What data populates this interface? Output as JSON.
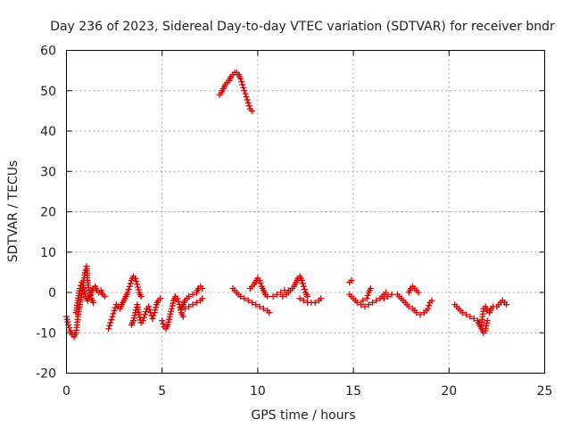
{
  "chart_data": {
    "type": "scatter",
    "title": "Day 236 of 2023, Sidereal Day-to-day VTEC variation (SDTVAR) for receiver bndr",
    "xlabel": "GPS time / hours",
    "ylabel": "SDTVAR / TECUs",
    "xlim": [
      0,
      25
    ],
    "ylim": [
      -20,
      60
    ],
    "xticks": [
      0,
      5,
      10,
      15,
      20,
      25
    ],
    "yticks": [
      -20,
      -10,
      0,
      10,
      20,
      30,
      40,
      50,
      60
    ],
    "xtick_labels": [
      "0",
      "5",
      "10",
      "15",
      "20",
      "25"
    ],
    "ytick_labels": [
      "-20",
      "-10",
      "0",
      "10",
      "20",
      "30",
      "40",
      "50",
      "60"
    ],
    "grid": true,
    "marker": "plus",
    "color": "#e00000",
    "series": [
      {
        "name": "SDTVAR",
        "segments": [
          [
            [
              0.0,
              -6
            ],
            [
              0.1,
              -8
            ],
            [
              0.2,
              -9.5
            ],
            [
              0.3,
              -10.5
            ],
            [
              0.4,
              -11
            ],
            [
              0.5,
              -10
            ],
            [
              0.55,
              -8
            ],
            [
              0.6,
              -6
            ],
            [
              0.7,
              -3
            ],
            [
              0.8,
              0
            ],
            [
              0.9,
              3
            ],
            [
              1.0,
              5.5
            ],
            [
              1.05,
              6.5
            ],
            [
              1.1,
              3
            ],
            [
              1.2,
              0
            ],
            [
              1.3,
              -1.5
            ],
            [
              1.4,
              -2.5
            ]
          ],
          [
            [
              0.5,
              -5
            ],
            [
              0.6,
              -2
            ],
            [
              0.7,
              1
            ],
            [
              0.8,
              2.5
            ],
            [
              0.9,
              1
            ],
            [
              1.0,
              -1
            ],
            [
              1.1,
              -2
            ],
            [
              1.2,
              -1
            ],
            [
              1.3,
              0
            ],
            [
              1.4,
              1
            ],
            [
              1.5,
              1.5
            ],
            [
              1.6,
              0.5
            ],
            [
              1.7,
              0
            ],
            [
              1.8,
              0.5
            ],
            [
              1.9,
              -0.5
            ],
            [
              2.0,
              -1
            ]
          ],
          [
            [
              2.2,
              -9
            ],
            [
              2.3,
              -7.5
            ],
            [
              2.4,
              -6
            ],
            [
              2.5,
              -4.5
            ],
            [
              2.6,
              -3
            ],
            [
              2.7,
              -3.5
            ],
            [
              2.8,
              -4
            ],
            [
              2.9,
              -3
            ],
            [
              3.0,
              -2
            ],
            [
              3.1,
              -1
            ],
            [
              3.2,
              0
            ],
            [
              3.3,
              1.5
            ],
            [
              3.4,
              3
            ],
            [
              3.5,
              4
            ],
            [
              3.6,
              3.5
            ],
            [
              3.7,
              2
            ],
            [
              3.8,
              0
            ],
            [
              3.9,
              -1
            ]
          ],
          [
            [
              3.4,
              -8
            ],
            [
              3.5,
              -7
            ],
            [
              3.6,
              -5
            ],
            [
              3.7,
              -3
            ],
            [
              3.8,
              -5.5
            ],
            [
              3.9,
              -7.5
            ],
            [
              4.0,
              -7
            ],
            [
              4.1,
              -5.5
            ],
            [
              4.2,
              -4
            ],
            [
              4.3,
              -3.5
            ],
            [
              4.4,
              -5
            ],
            [
              4.5,
              -6.5
            ],
            [
              4.6,
              -5
            ],
            [
              4.7,
              -3
            ],
            [
              4.8,
              -2
            ],
            [
              4.9,
              -1.5
            ]
          ],
          [
            [
              5.0,
              -7
            ],
            [
              5.1,
              -8.5
            ],
            [
              5.2,
              -9
            ],
            [
              5.3,
              -8
            ],
            [
              5.4,
              -6
            ],
            [
              5.5,
              -4
            ],
            [
              5.6,
              -2
            ],
            [
              5.7,
              -1
            ],
            [
              5.8,
              -1.5
            ],
            [
              5.9,
              -3
            ],
            [
              6.0,
              -5
            ],
            [
              6.1,
              -6
            ]
          ],
          [
            [
              6.0,
              -4
            ],
            [
              6.2,
              -2
            ],
            [
              6.4,
              -1
            ],
            [
              6.6,
              -0.5
            ],
            [
              6.8,
              0
            ],
            [
              6.9,
              1
            ],
            [
              7.0,
              1.5
            ],
            [
              7.1,
              1
            ]
          ],
          [
            [
              6.2,
              -4
            ],
            [
              6.4,
              -3.5
            ],
            [
              6.6,
              -3
            ],
            [
              6.8,
              -2.5
            ],
            [
              7.0,
              -2
            ],
            [
              7.1,
              -1.5
            ]
          ],
          [
            [
              8.0,
              49
            ],
            [
              8.1,
              49.5
            ],
            [
              8.2,
              50.5
            ],
            [
              8.3,
              51.5
            ],
            [
              8.4,
              52
            ],
            [
              8.5,
              52.5
            ],
            [
              8.6,
              53.5
            ],
            [
              8.7,
              54
            ],
            [
              8.8,
              54.5
            ],
            [
              8.9,
              54.5
            ],
            [
              9.0,
              54
            ],
            [
              9.1,
              53
            ],
            [
              9.2,
              51.5
            ],
            [
              9.3,
              50
            ],
            [
              9.4,
              48.5
            ],
            [
              9.5,
              47
            ],
            [
              9.6,
              45.5
            ],
            [
              9.7,
              45
            ]
          ],
          [
            [
              8.7,
              1
            ],
            [
              8.9,
              0
            ],
            [
              9.1,
              -1
            ],
            [
              9.3,
              -1.5
            ],
            [
              9.5,
              -2
            ],
            [
              9.7,
              -2.5
            ],
            [
              9.9,
              -3
            ],
            [
              10.1,
              -3.5
            ],
            [
              10.3,
              -4
            ],
            [
              10.5,
              -4.5
            ],
            [
              10.6,
              -5
            ]
          ],
          [
            [
              9.6,
              1
            ],
            [
              9.8,
              2
            ],
            [
              10.0,
              3.5
            ],
            [
              10.1,
              3
            ],
            [
              10.2,
              1.5
            ],
            [
              10.3,
              0.5
            ],
            [
              10.4,
              -0.5
            ],
            [
              10.5,
              -1
            ]
          ],
          [
            [
              10.8,
              -1
            ],
            [
              11.0,
              -0.5
            ],
            [
              11.2,
              0
            ],
            [
              11.4,
              0.5
            ],
            [
              11.6,
              0.5
            ]
          ],
          [
            [
              11.3,
              -1
            ],
            [
              11.5,
              -0.5
            ],
            [
              11.7,
              0.5
            ],
            [
              11.9,
              1.5
            ],
            [
              12.0,
              2.5
            ],
            [
              12.1,
              3.5
            ],
            [
              12.2,
              4
            ],
            [
              12.3,
              3
            ],
            [
              12.4,
              1.5
            ],
            [
              12.5,
              0
            ],
            [
              12.6,
              -1
            ]
          ],
          [
            [
              12.2,
              -1.5
            ],
            [
              12.4,
              -2
            ],
            [
              12.6,
              -2.5
            ],
            [
              12.8,
              -2.5
            ],
            [
              13.0,
              -2.5
            ],
            [
              13.2,
              -2
            ],
            [
              13.3,
              -1.5
            ]
          ],
          [
            [
              14.8,
              2.5
            ],
            [
              14.9,
              3
            ]
          ],
          [
            [
              14.8,
              -0.5
            ],
            [
              15.0,
              -1.5
            ],
            [
              15.2,
              -2.5
            ],
            [
              15.4,
              -3
            ],
            [
              15.6,
              -3.5
            ],
            [
              15.8,
              -3
            ],
            [
              16.0,
              -2.5
            ],
            [
              16.2,
              -2
            ],
            [
              16.4,
              -1.5
            ],
            [
              16.6,
              -0.5
            ],
            [
              16.7,
              0
            ]
          ],
          [
            [
              15.5,
              -2
            ],
            [
              15.7,
              -1.5
            ],
            [
              15.8,
              0
            ],
            [
              15.9,
              1
            ]
          ],
          [
            [
              16.6,
              -1.5
            ],
            [
              16.8,
              -1
            ],
            [
              17.0,
              -0.5
            ]
          ],
          [
            [
              17.3,
              -0.5
            ],
            [
              17.5,
              -1.5
            ],
            [
              17.7,
              -2.5
            ],
            [
              17.9,
              -3.5
            ],
            [
              18.1,
              -4
            ],
            [
              18.3,
              -5
            ],
            [
              18.5,
              -5.5
            ],
            [
              18.7,
              -5
            ],
            [
              18.9,
              -4
            ],
            [
              19.0,
              -2.5
            ],
            [
              19.1,
              -2
            ]
          ],
          [
            [
              17.9,
              0
            ],
            [
              18.0,
              1
            ],
            [
              18.1,
              1.5
            ],
            [
              18.2,
              1
            ],
            [
              18.3,
              0.5
            ],
            [
              18.4,
              0
            ]
          ],
          [
            [
              20.3,
              -3
            ],
            [
              20.5,
              -4
            ],
            [
              20.7,
              -5
            ],
            [
              20.9,
              -5.5
            ],
            [
              21.1,
              -6
            ],
            [
              21.3,
              -6.5
            ],
            [
              21.5,
              -7
            ],
            [
              21.6,
              -8
            ],
            [
              21.7,
              -9
            ],
            [
              21.8,
              -10
            ],
            [
              21.9,
              -9.5
            ],
            [
              22.0,
              -7
            ]
          ],
          [
            [
              21.7,
              -8
            ],
            [
              21.75,
              -6
            ],
            [
              21.8,
              -4
            ],
            [
              21.9,
              -3.5
            ],
            [
              22.0,
              -4.5
            ],
            [
              22.1,
              -5
            ],
            [
              22.2,
              -4
            ],
            [
              22.3,
              -3.5
            ],
            [
              22.5,
              -3.5
            ],
            [
              22.6,
              -3
            ],
            [
              22.7,
              -2.5
            ],
            [
              22.8,
              -2
            ],
            [
              22.9,
              -2.5
            ],
            [
              23.0,
              -3
            ]
          ]
        ]
      }
    ]
  }
}
